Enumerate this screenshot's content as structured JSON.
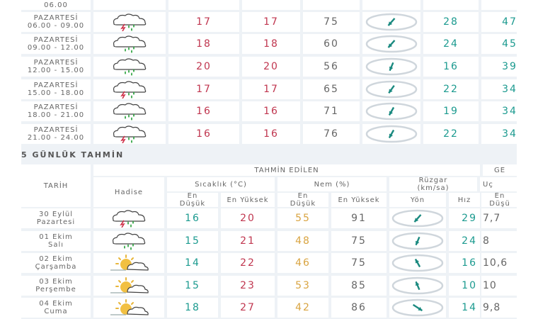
{
  "hourly": {
    "rows": [
      {
        "day": "PAZARTESİ",
        "time": "06.00 - 09.00",
        "icon": "rain-thunder-icon",
        "temp": "17",
        "feels": "17",
        "humidity": "75",
        "wind_dir_deg": 120,
        "speed": "28",
        "gust": "47"
      },
      {
        "day": "PAZARTESİ",
        "time": "09.00 - 12.00",
        "icon": "rain-icon",
        "temp": "18",
        "feels": "18",
        "humidity": "60",
        "wind_dir_deg": 120,
        "speed": "24",
        "gust": "45"
      },
      {
        "day": "PAZARTESİ",
        "time": "12.00 - 15.00",
        "icon": "rain-icon",
        "temp": "20",
        "feels": "20",
        "humidity": "56",
        "wind_dir_deg": 105,
        "speed": "16",
        "gust": "39"
      },
      {
        "day": "PAZARTESİ",
        "time": "15.00 - 18.00",
        "icon": "rain-thunder-icon",
        "temp": "17",
        "feels": "17",
        "humidity": "65",
        "wind_dir_deg": 115,
        "speed": "22",
        "gust": "34"
      },
      {
        "day": "PAZARTESİ",
        "time": "18.00 - 21.00",
        "icon": "rain-icon",
        "temp": "16",
        "feels": "16",
        "humidity": "71",
        "wind_dir_deg": 110,
        "speed": "19",
        "gust": "34"
      },
      {
        "day": "PAZARTESİ",
        "time": "21.00 - 24.00",
        "icon": "rain-thunder-icon",
        "temp": "16",
        "feels": "16",
        "humidity": "76",
        "wind_dir_deg": 110,
        "speed": "22",
        "gust": "34"
      }
    ],
    "partial_top": {
      "time": "06.00"
    }
  },
  "five_day": {
    "title": "5 GÜNLÜK TAHMİN",
    "headers": {
      "date": "TARİH",
      "event": "Hadise",
      "forecast": "TAHMİN EDİLEN",
      "temp": "Sıcaklık (°C)",
      "humidity": "Nem (%)",
      "wind": "Rüzgar (km/sa)",
      "next_group": "GE",
      "temp_low": "En Düşük",
      "temp_high": "En Yüksek",
      "hum_low": "En Düşük",
      "hum_high": "En Yüksek",
      "direction": "Yön",
      "speed": "Hız",
      "uc": "Uç",
      "next_low": "En Düşü"
    },
    "rows": [
      {
        "date": "30 Eylül",
        "day": "Pazartesi",
        "icon": "rain-thunder-icon",
        "tmin": "16",
        "tmax": "20",
        "hmin": "55",
        "hmax": "91",
        "wind_dir_deg": 120,
        "speed": "29",
        "next": "7,7"
      },
      {
        "date": "01 Ekim",
        "day": "Salı",
        "icon": "rain-icon",
        "tmin": "15",
        "tmax": "21",
        "hmin": "48",
        "hmax": "75",
        "wind_dir_deg": 105,
        "speed": "24",
        "next": "8"
      },
      {
        "date": "02 Ekim",
        "day": "Çarşamba",
        "icon": "partly-cloudy-icon",
        "tmin": "14",
        "tmax": "22",
        "hmin": "46",
        "hmax": "75",
        "wind_dir_deg": 250,
        "speed": "16",
        "next": "10,6"
      },
      {
        "date": "03 Ekim",
        "day": "Perşembe",
        "icon": "partly-cloudy-icon",
        "tmin": "15",
        "tmax": "23",
        "hmin": "53",
        "hmax": "85",
        "wind_dir_deg": 255,
        "speed": "10",
        "next": "10"
      },
      {
        "date": "04 Ekim",
        "day": "Cuma",
        "icon": "partly-cloudy-icon",
        "tmin": "18",
        "tmax": "27",
        "hmin": "42",
        "hmax": "86",
        "wind_dir_deg": 45,
        "speed": "14",
        "next": "9,8"
      }
    ]
  }
}
